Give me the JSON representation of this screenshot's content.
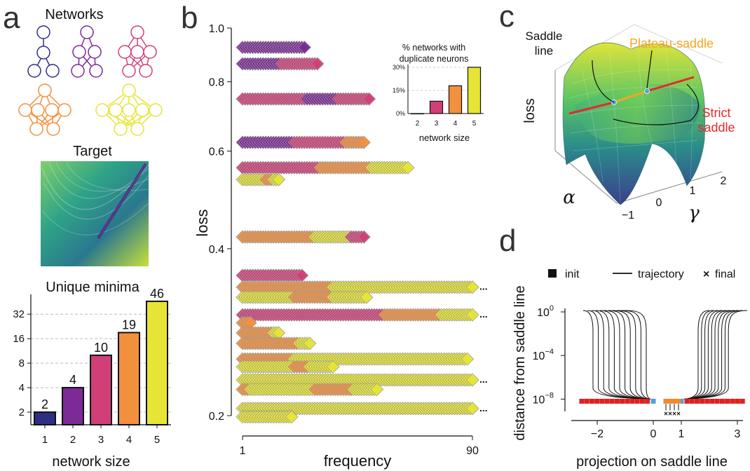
{
  "panels": {
    "a": "a",
    "b": "b",
    "c": "c",
    "d": "d"
  },
  "colors": {
    "s1": "#2e2f82",
    "s2": "#7b2a96",
    "s3": "#d13f78",
    "s4": "#f2903e",
    "s5": "#e6e535",
    "plateau": "#f5a623",
    "strict": "#e32b2b",
    "saddle_point": "#4aa3df",
    "init": "#e02020",
    "finalish": "#f08a30"
  },
  "panel_a": {
    "networks_title": "Networks",
    "target_title": "Target",
    "minima_title": "Unique minima",
    "chart_data": {
      "type": "bar",
      "categories": [
        "1",
        "2",
        "3",
        "4",
        "5"
      ],
      "values": [
        2,
        4,
        10,
        19,
        46
      ],
      "data_labels": [
        "2",
        "4",
        "10",
        "19",
        "46"
      ],
      "y_scale": "log",
      "y_ticks": [
        "2",
        "4",
        "8",
        "16",
        "32"
      ],
      "grid": "dashed horizontal",
      "xlabel": "network size",
      "title": "Unique minima"
    }
  },
  "panel_b": {
    "xlabel": "frequency",
    "ylabel": "loss",
    "x_ticks": [
      "1",
      "90"
    ],
    "y_ticks": [
      "1.0",
      "0.8",
      "0.6",
      "0.4",
      "0.2"
    ],
    "chart_data": {
      "type": "scatter",
      "xlim": [
        1,
        90
      ],
      "ylim": [
        0.19,
        1.0
      ],
      "y_scale": "log",
      "rows": [
        {
          "loss": 0.923,
          "segments": [
            [
              2,
              25
            ]
          ]
        },
        {
          "loss": 0.862,
          "segments": [
            [
              2,
              3,
              30
            ]
          ]
        },
        {
          "loss": 0.745,
          "segments": [
            [
              3,
              25
            ],
            [
              2,
              12
            ],
            [
              3,
              13
            ]
          ]
        },
        {
          "loss": 0.622,
          "segments": [
            [
              2,
              20
            ],
            [
              3,
              20
            ],
            [
              4,
              8
            ]
          ]
        },
        {
          "loss": 0.56,
          "segments": [
            [
              3,
              30
            ],
            [
              4,
              20
            ],
            [
              5,
              15
            ]
          ]
        },
        {
          "loss": 0.533,
          "segments": [
            [
              5,
              9
            ],
            [
              4,
              3
            ],
            [
              5,
              3
            ]
          ]
        },
        {
          "loss": 0.42,
          "segments": [
            [
              4,
              28
            ],
            [
              5,
              14
            ],
            [
              3,
              6
            ]
          ]
        },
        {
          "loss": 0.358,
          "segments": [
            [
              3,
              24
            ]
          ]
        },
        {
          "loss": 0.341,
          "segments": [
            [
              4,
              35
            ],
            [
              5,
              55
            ]
          ],
          "truncated": true
        },
        {
          "loss": 0.327,
          "segments": [
            [
              5,
              20
            ],
            [
              4,
              15
            ],
            [
              5,
              14
            ]
          ]
        },
        {
          "loss": 0.304,
          "segments": [
            [
              3,
              55
            ],
            [
              4,
              22
            ],
            [
              5,
              13
            ]
          ],
          "truncated": true
        },
        {
          "loss": 0.294,
          "segments": [
            [
              4,
              4
            ]
          ]
        },
        {
          "loss": 0.282,
          "segments": [
            [
              4,
              12
            ],
            [
              5,
              3
            ]
          ]
        },
        {
          "loss": 0.27,
          "segments": [
            [
              4,
              22
            ],
            [
              5,
              5
            ]
          ]
        },
        {
          "loss": 0.253,
          "segments": [
            [
              4,
              20
            ],
            [
              5,
              68
            ]
          ]
        },
        {
          "loss": 0.245,
          "segments": [
            [
              5,
              20
            ],
            [
              4,
              6
            ],
            [
              5,
              10
            ]
          ]
        },
        {
          "loss": 0.232,
          "segments": [
            [
              5,
              90
            ]
          ],
          "truncated": true
        },
        {
          "loss": 0.223,
          "segments": [
            [
              4,
              3
            ],
            [
              5,
              25
            ],
            [
              4,
              15
            ],
            [
              5,
              10
            ]
          ]
        },
        {
          "loss": 0.206,
          "segments": [
            [
              5,
              90
            ]
          ],
          "truncated": true
        },
        {
          "loss": 0.199,
          "segments": [
            [
              5,
              20
            ]
          ]
        }
      ],
      "title": ""
    },
    "inset": {
      "title_line1": "% networks with",
      "title_line2": "duplicate neurons",
      "xlabel": "network size",
      "chart_data": {
        "type": "bar",
        "categories": [
          "2",
          "3",
          "4",
          "5"
        ],
        "values": [
          0,
          8,
          18,
          30
        ],
        "y_ticks": [
          "0%",
          "15%",
          "30%"
        ],
        "ylim": [
          0,
          30
        ],
        "title": "% networks with duplicate neurons",
        "xlabel": "network size"
      }
    }
  },
  "panel_c": {
    "saddle_label_1": "Saddle",
    "saddle_label_2": "line",
    "plateau_label": "Plateau-saddle",
    "strict_label_1": "Strict",
    "strict_label_2": "saddle",
    "zlabel": "loss",
    "alpha_label": "α",
    "gamma_label": "γ",
    "gamma_ticks": [
      "−1",
      "0",
      "1",
      "2"
    ]
  },
  "panel_d": {
    "legend": {
      "init": "init",
      "trajectory": "trajectory",
      "final": "final"
    },
    "ylabel": "distance from saddle line",
    "xlabel": "projection on saddle line",
    "x_ticks": [
      "−2",
      "0",
      "1",
      "3"
    ],
    "y_ticks": [
      {
        "base": "10",
        "exp": "0"
      },
      {
        "base": "10",
        "exp": "−4"
      },
      {
        "base": "10",
        "exp": "−8"
      }
    ],
    "chart_data": {
      "type": "line",
      "xlim": [
        -2.8,
        3.2
      ],
      "y_scale": "log",
      "ylim": [
        1e-09,
        1
      ],
      "left_trajectories_x": [
        -2.6,
        -2.45,
        -2.3,
        -2.15,
        -2.0,
        -1.85,
        -1.7,
        -1.55,
        -1.4,
        -1.25,
        -1.1
      ],
      "right_trajectories_x": [
        1.9,
        2.05,
        2.2,
        2.35,
        2.5,
        2.65,
        2.8,
        2.95,
        3.1,
        3.25
      ],
      "final_x": [
        0.45,
        0.6,
        0.75,
        0.9
      ],
      "title": ""
    }
  }
}
